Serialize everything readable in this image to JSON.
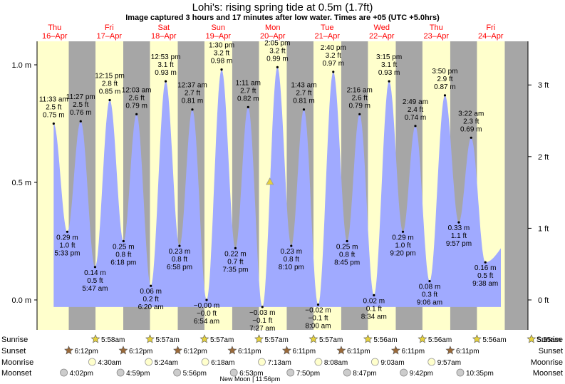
{
  "title": "Lohi's: rising  spring tide at 0.5m (1.7ft)",
  "subtitle": "Image captured 3 hours and 17 minutes after low water. Times are +05 (UTC +5.0hrs)",
  "colors": {
    "day": "#ffffcc",
    "night": "#a6a6a6",
    "water": "#a0aaff",
    "date_label": "#ff0000",
    "marker": "#e6d23c"
  },
  "chart_data": {
    "type": "area",
    "ylim_m": [
      -0.1,
      1.08
    ],
    "grid": false,
    "y_ticks_m": [
      {
        "value": 0.0,
        "label": "0.0 m"
      },
      {
        "value": 0.5,
        "label": "0.5 m"
      },
      {
        "value": 1.0,
        "label": "1.0 m"
      }
    ],
    "y_ticks_ft": [
      {
        "value": 0,
        "label": "0 ft"
      },
      {
        "value": 1,
        "label": "1 ft"
      },
      {
        "value": 2,
        "label": "2 ft"
      },
      {
        "value": 3,
        "label": "3 ft"
      }
    ],
    "days": [
      {
        "dow": "Thu",
        "date": "16–Apr"
      },
      {
        "dow": "Fri",
        "date": "17–Apr"
      },
      {
        "dow": "Sat",
        "date": "18–Apr"
      },
      {
        "dow": "Sun",
        "date": "19–Apr"
      },
      {
        "dow": "Mon",
        "date": "20–Apr"
      },
      {
        "dow": "Tue",
        "date": "21–Apr"
      },
      {
        "dow": "Wed",
        "date": "22–Apr"
      },
      {
        "dow": "Thu",
        "date": "23–Apr"
      },
      {
        "dow": "Fri",
        "date": "24–Apr"
      }
    ],
    "tides": [
      {
        "day": 0,
        "hour": 11.55,
        "type": "high",
        "time": "11:33 am",
        "ft": "2.5 ft",
        "m": "0.75 m",
        "value": 0.75
      },
      {
        "day": 0,
        "hour": 17.55,
        "type": "low",
        "time": "5:33 pm",
        "ft": "1.0 ft",
        "m": "0.29 m",
        "value": 0.29
      },
      {
        "day": 0,
        "hour": 23.45,
        "type": "high",
        "time": "11:27 pm",
        "ft": "2.5 ft",
        "m": "0.76 m",
        "value": 0.76
      },
      {
        "day": 1,
        "hour": 5.78,
        "type": "low",
        "time": "5:47 am",
        "ft": "0.5 ft",
        "m": "0.14 m",
        "value": 0.14
      },
      {
        "day": 1,
        "hour": 12.25,
        "type": "high",
        "time": "12:15 pm",
        "ft": "2.8 ft",
        "m": "0.85 m",
        "value": 0.85
      },
      {
        "day": 1,
        "hour": 18.3,
        "type": "low",
        "time": "6:18 pm",
        "ft": "0.8 ft",
        "m": "0.25 m",
        "value": 0.25
      },
      {
        "day": 2,
        "hour": 0.05,
        "type": "high",
        "time": "12:03 am",
        "ft": "2.6 ft",
        "m": "0.79 m",
        "value": 0.79
      },
      {
        "day": 2,
        "hour": 6.33,
        "type": "low",
        "time": "6:20 am",
        "ft": "0.2 ft",
        "m": "0.06 m",
        "value": 0.06
      },
      {
        "day": 2,
        "hour": 12.88,
        "type": "high",
        "time": "12:53 pm",
        "ft": "3.1 ft",
        "m": "0.93 m",
        "value": 0.93
      },
      {
        "day": 2,
        "hour": 18.97,
        "type": "low",
        "time": "6:58 pm",
        "ft": "0.8 ft",
        "m": "0.23 m",
        "value": 0.23
      },
      {
        "day": 3,
        "hour": 0.62,
        "type": "high",
        "time": "12:37 am",
        "ft": "2.7 ft",
        "m": "0.81 m",
        "value": 0.81
      },
      {
        "day": 3,
        "hour": 6.9,
        "type": "low",
        "time": "6:54 am",
        "ft": "−0.0 ft",
        "m": "−0.00 m",
        "value": 0.0
      },
      {
        "day": 3,
        "hour": 13.5,
        "type": "high",
        "time": "1:30 pm",
        "ft": "3.2 ft",
        "m": "0.98 m",
        "value": 0.98
      },
      {
        "day": 3,
        "hour": 19.58,
        "type": "low",
        "time": "7:35 pm",
        "ft": "0.7 ft",
        "m": "0.22 m",
        "value": 0.22
      },
      {
        "day": 4,
        "hour": 1.18,
        "type": "high",
        "time": "1:11 am",
        "ft": "2.7 ft",
        "m": "0.82 m",
        "value": 0.82
      },
      {
        "day": 4,
        "hour": 7.45,
        "type": "low",
        "time": "7:27 am",
        "ft": "−0.1 ft",
        "m": "−0.03 m",
        "value": -0.03
      },
      {
        "day": 4,
        "hour": 14.08,
        "type": "high",
        "time": "2:05 pm",
        "ft": "3.2 ft",
        "m": "0.99 m",
        "value": 0.99
      },
      {
        "day": 4,
        "hour": 20.17,
        "type": "low",
        "time": "8:10 pm",
        "ft": "0.8 ft",
        "m": "0.23 m",
        "value": 0.23
      },
      {
        "day": 5,
        "hour": 1.72,
        "type": "high",
        "time": "1:43 am",
        "ft": "2.7 ft",
        "m": "0.81 m",
        "value": 0.81
      },
      {
        "day": 5,
        "hour": 8.0,
        "type": "low",
        "time": "8:00 am",
        "ft": "−0.1 ft",
        "m": "−0.02 m",
        "value": -0.02
      },
      {
        "day": 5,
        "hour": 14.67,
        "type": "high",
        "time": "2:40 pm",
        "ft": "3.2 ft",
        "m": "0.97 m",
        "value": 0.97
      },
      {
        "day": 5,
        "hour": 20.75,
        "type": "low",
        "time": "8:45 pm",
        "ft": "0.8 ft",
        "m": "0.25 m",
        "value": 0.25
      },
      {
        "day": 6,
        "hour": 2.27,
        "type": "high",
        "time": "2:16 am",
        "ft": "2.6 ft",
        "m": "0.79 m",
        "value": 0.79
      },
      {
        "day": 6,
        "hour": 8.57,
        "type": "low",
        "time": "8:34 am",
        "ft": "0.1 ft",
        "m": "0.02 m",
        "value": 0.02
      },
      {
        "day": 6,
        "hour": 15.25,
        "type": "high",
        "time": "3:15 pm",
        "ft": "3.1 ft",
        "m": "0.93 m",
        "value": 0.93
      },
      {
        "day": 6,
        "hour": 21.33,
        "type": "low",
        "time": "9:20 pm",
        "ft": "1.0 ft",
        "m": "0.29 m",
        "value": 0.29
      },
      {
        "day": 7,
        "hour": 2.82,
        "type": "high",
        "time": "2:49 am",
        "ft": "2.4 ft",
        "m": "0.74 m",
        "value": 0.74
      },
      {
        "day": 7,
        "hour": 9.1,
        "type": "low",
        "time": "9:06 am",
        "ft": "0.3 ft",
        "m": "0.08 m",
        "value": 0.08
      },
      {
        "day": 7,
        "hour": 15.83,
        "type": "high",
        "time": "3:50 pm",
        "ft": "2.9 ft",
        "m": "0.87 m",
        "value": 0.87
      },
      {
        "day": 7,
        "hour": 21.95,
        "type": "low",
        "time": "9:57 pm",
        "ft": "1.1 ft",
        "m": "0.33 m",
        "value": 0.33
      },
      {
        "day": 8,
        "hour": 3.37,
        "type": "high",
        "time": "3:22 am",
        "ft": "2.3 ft",
        "m": "0.69 m",
        "value": 0.69
      },
      {
        "day": 8,
        "hour": 9.63,
        "type": "low",
        "time": "9:38 am",
        "ft": "0.5 ft",
        "m": "0.16 m",
        "value": 0.16
      }
    ],
    "current": {
      "day": 4,
      "hour": 10.75,
      "value": 0.5
    },
    "sun": [
      {
        "day": 1,
        "rise": "5:58am",
        "rise_h": 5.97,
        "set_prev": "6:12pm",
        "set_h": 18.2
      },
      {
        "day": 2,
        "rise": "5:57am",
        "rise_h": 5.95,
        "set_prev": "6:12pm",
        "set_h": 18.2
      },
      {
        "day": 3,
        "rise": "5:57am",
        "rise_h": 5.95,
        "set_prev": "6:12pm",
        "set_h": 18.2
      },
      {
        "day": 4,
        "rise": "5:57am",
        "rise_h": 5.95,
        "set_prev": "6:11pm",
        "set_h": 18.18
      },
      {
        "day": 5,
        "rise": "5:57am",
        "rise_h": 5.95,
        "set_prev": "6:11pm",
        "set_h": 18.18
      },
      {
        "day": 6,
        "rise": "5:56am",
        "rise_h": 5.93,
        "set_prev": "6:11pm",
        "set_h": 18.18
      },
      {
        "day": 7,
        "rise": "5:56am",
        "rise_h": 5.93,
        "set_prev": "6:11pm",
        "set_h": 18.18
      },
      {
        "day": 8,
        "rise": "5:56am",
        "rise_h": 5.93,
        "set_prev": "6:11pm",
        "set_h": 18.18
      },
      {
        "day": 9,
        "rise": "5:55am",
        "rise_h": 5.92,
        "set_prev": "6:11pm",
        "set_h": 18.18
      }
    ],
    "moonrise": [
      {
        "day": 1,
        "hour": 4.5,
        "label": "4:30am"
      },
      {
        "day": 2,
        "hour": 5.4,
        "label": "5:24am"
      },
      {
        "day": 3,
        "hour": 6.3,
        "label": "6:18am"
      },
      {
        "day": 4,
        "hour": 7.22,
        "label": "7:13am"
      },
      {
        "day": 5,
        "hour": 8.13,
        "label": "8:08am"
      },
      {
        "day": 6,
        "hour": 9.05,
        "label": "9:03am"
      },
      {
        "day": 7,
        "hour": 9.95,
        "label": "9:57am"
      }
    ],
    "moonset": [
      {
        "day": 0,
        "hour": 16.03,
        "label": "4:02pm"
      },
      {
        "day": 1,
        "hour": 16.98,
        "label": "4:59pm"
      },
      {
        "day": 2,
        "hour": 17.93,
        "label": "5:56pm"
      },
      {
        "day": 3,
        "hour": 18.88,
        "label": "6:53pm"
      },
      {
        "day": 4,
        "hour": 19.83,
        "label": "7:50pm"
      },
      {
        "day": 5,
        "hour": 20.78,
        "label": "8:47pm"
      },
      {
        "day": 6,
        "hour": 21.7,
        "label": "9:42pm"
      },
      {
        "day": 7,
        "hour": 22.58,
        "label": "10:35pm"
      }
    ],
    "row_labels": [
      "Sunrise",
      "Sunset",
      "Moonrise",
      "Moonset"
    ],
    "new_moon_note": "New Moon | 11:56pm"
  }
}
